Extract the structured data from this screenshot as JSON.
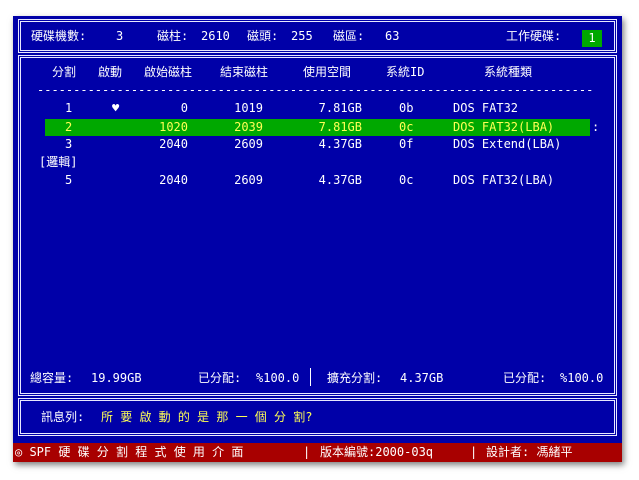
{
  "header": {
    "disk_count_label": "硬碟機數:",
    "disk_count": "3",
    "cylinders_label": "磁柱:",
    "cylinders": "2610",
    "heads_label": "磁頭:",
    "heads": "255",
    "sectors_label": "磁區:",
    "sectors": "63",
    "working_disk_label": "工作硬碟:",
    "working_disk": "1"
  },
  "table": {
    "columns": [
      "分割",
      "啟動",
      "啟始磁柱",
      "結束磁柱",
      "使用空間",
      "系統ID",
      "系統種類"
    ],
    "divider": "-----------------------------------------------------------------------------",
    "rows": [
      {
        "num": "1",
        "boot": "♥",
        "start": "0",
        "end": "1019",
        "size": "7.81GB",
        "id": "0b",
        "type": "DOS FAT32"
      },
      {
        "num": "2",
        "boot": "",
        "start": "1020",
        "end": "2039",
        "size": "7.81GB",
        "id": "0c",
        "type": "DOS FAT32(LBA)"
      },
      {
        "num": "3",
        "boot": "",
        "start": "2040",
        "end": "2609",
        "size": "4.37GB",
        "id": "0f",
        "type": "DOS Extend(LBA)"
      },
      {
        "num": "5",
        "boot": "",
        "start": "2040",
        "end": "2609",
        "size": "4.37GB",
        "id": "0c",
        "type": "DOS FAT32(LBA)"
      }
    ],
    "logical_label": "[邏輯]",
    "selected_row": 2
  },
  "footer": {
    "total_label": "總容量:",
    "total": "19.99GB",
    "allocated_label": "已分配:",
    "allocated": "%100.0",
    "extended_label": "擴充分割:",
    "extended": "4.37GB",
    "ext_allocated_label": "已分配:",
    "ext_allocated": "%100.0"
  },
  "message": {
    "label": "訊息列:",
    "text": "所 要 啟 動 的 是 那 一 個 分 割?"
  },
  "status": {
    "title": "◎ SPF 硬 碟 分 割 程 式 使 用 介 面",
    "version": "版本編號:2000-03q",
    "author": "設計者: 馮緒平"
  },
  "colors": {
    "background": "#0000a8",
    "highlight": "#00a800",
    "status_bar": "#a80000",
    "message_text": "#ffff55"
  }
}
